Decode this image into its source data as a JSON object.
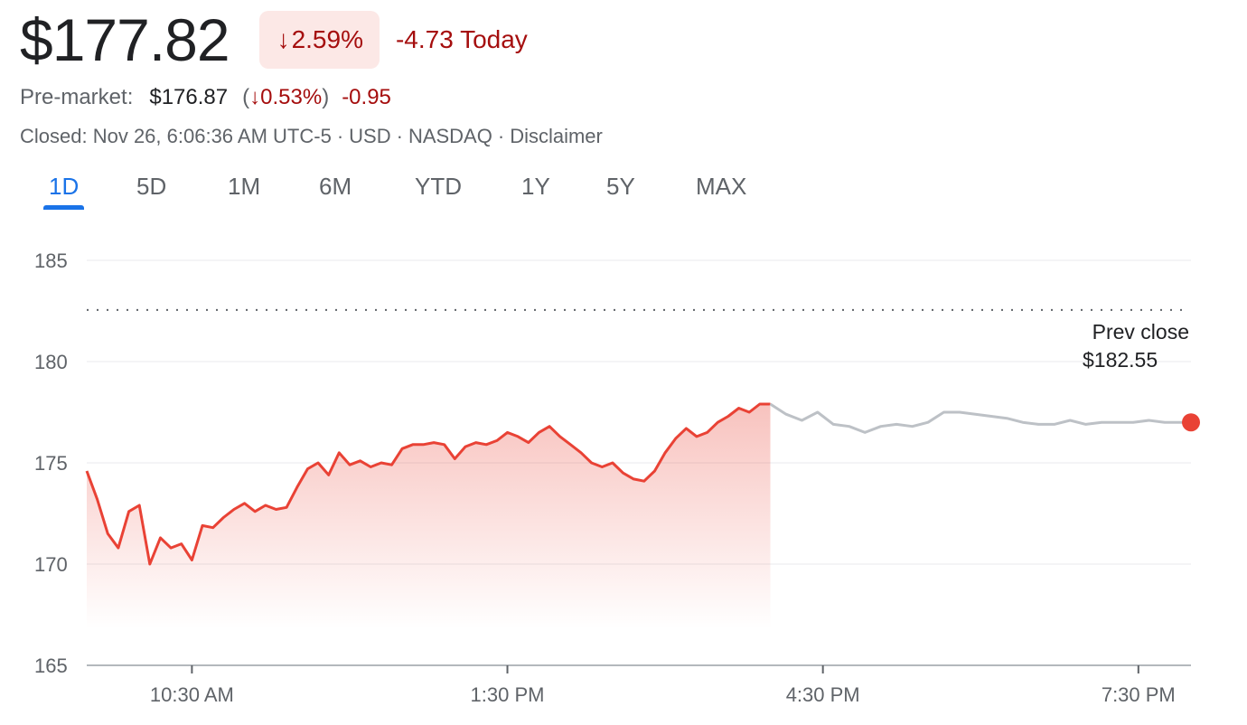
{
  "quote": {
    "price": "$177.82",
    "change_arrow": "↓",
    "change_pct": "2.59%",
    "change_today": "-4.73 Today",
    "premarket_label": "Pre-market:",
    "premarket_price": "$176.87",
    "premarket_paren_open": "(",
    "premarket_pct": "↓0.53%",
    "premarket_paren_close": ")",
    "premarket_delta": "-0.95",
    "status_parts": [
      "Closed: Nov 26, 6:06:36 AM UTC-5",
      "USD",
      "NASDAQ",
      "Disclaimer"
    ]
  },
  "tabs": [
    {
      "label": "1D",
      "active": true
    },
    {
      "label": "5D",
      "active": false
    },
    {
      "label": "1M",
      "active": false
    },
    {
      "label": "6M",
      "active": false
    },
    {
      "label": "YTD",
      "active": false
    },
    {
      "label": "1Y",
      "active": false
    },
    {
      "label": "5Y",
      "active": false
    },
    {
      "label": "MAX",
      "active": false
    }
  ],
  "colors": {
    "negative": "#a50e0e",
    "line_red": "#e94235",
    "line_afterhours": "#bdc1c6",
    "accent": "#1a73e8",
    "grid": "#e8eaed"
  },
  "chart_data": {
    "type": "line",
    "x_unit": "hours (time of day, ET)",
    "x_range": [
      9.5,
      20.0
    ],
    "ylim": [
      165,
      185
    ],
    "y_ticks": [
      185,
      180,
      175,
      170,
      165
    ],
    "x_ticks": [
      {
        "x": 10.5,
        "label": "10:30 AM"
      },
      {
        "x": 13.5,
        "label": "1:30 PM"
      },
      {
        "x": 16.5,
        "label": "4:30 PM"
      },
      {
        "x": 19.5,
        "label": "7:30 PM"
      }
    ],
    "prev_close": {
      "value": 182.55,
      "label": "Prev close",
      "value_label": "$182.55"
    },
    "grid": true,
    "series": [
      {
        "session": "regular",
        "x": [
          9.5,
          9.6,
          9.7,
          9.8,
          9.9,
          10.0,
          10.1,
          10.2,
          10.3,
          10.4,
          10.5,
          10.6,
          10.7,
          10.8,
          10.9,
          11.0,
          11.1,
          11.2,
          11.3,
          11.4,
          11.5,
          11.6,
          11.7,
          11.8,
          11.9,
          12.0,
          12.1,
          12.2,
          12.3,
          12.4,
          12.5,
          12.6,
          12.7,
          12.8,
          12.9,
          13.0,
          13.1,
          13.2,
          13.3,
          13.4,
          13.5,
          13.6,
          13.7,
          13.8,
          13.9,
          14.0,
          14.1,
          14.2,
          14.3,
          14.4,
          14.5,
          14.6,
          14.7,
          14.8,
          14.9,
          15.0,
          15.1,
          15.2,
          15.3,
          15.4,
          15.5,
          15.6,
          15.7,
          15.8,
          15.9,
          16.0
        ],
        "values": [
          174.6,
          173.2,
          171.5,
          170.8,
          172.6,
          172.9,
          170.0,
          171.3,
          170.8,
          171.0,
          170.2,
          171.9,
          171.8,
          172.3,
          172.7,
          173.0,
          172.6,
          172.9,
          172.7,
          172.8,
          173.8,
          174.7,
          175.0,
          174.4,
          175.5,
          174.9,
          175.1,
          174.8,
          175.0,
          174.9,
          175.7,
          175.9,
          175.9,
          176.0,
          175.9,
          175.2,
          175.8,
          176.0,
          175.9,
          176.1,
          176.5,
          176.3,
          176.0,
          176.5,
          176.8,
          176.3,
          175.9,
          175.5,
          175.0,
          174.8,
          175.0,
          174.5,
          174.2,
          174.1,
          174.6,
          175.5,
          176.2,
          176.7,
          176.3,
          176.5,
          177.0,
          177.3,
          177.7,
          177.5,
          177.9,
          177.9
        ]
      },
      {
        "session": "after-hours",
        "x": [
          16.0,
          16.15,
          16.3,
          16.45,
          16.6,
          16.75,
          16.9,
          17.05,
          17.2,
          17.35,
          17.5,
          17.65,
          17.8,
          17.95,
          18.1,
          18.25,
          18.4,
          18.55,
          18.7,
          18.85,
          19.0,
          19.15,
          19.3,
          19.45,
          19.6,
          19.75,
          19.9,
          20.0
        ],
        "values": [
          177.9,
          177.4,
          177.1,
          177.5,
          176.9,
          176.8,
          176.5,
          176.8,
          176.9,
          176.8,
          177.0,
          177.5,
          177.5,
          177.4,
          177.3,
          177.2,
          177.0,
          176.9,
          176.9,
          177.1,
          176.9,
          177.0,
          177.0,
          177.0,
          177.1,
          177.0,
          177.0,
          177.0
        ]
      }
    ]
  }
}
